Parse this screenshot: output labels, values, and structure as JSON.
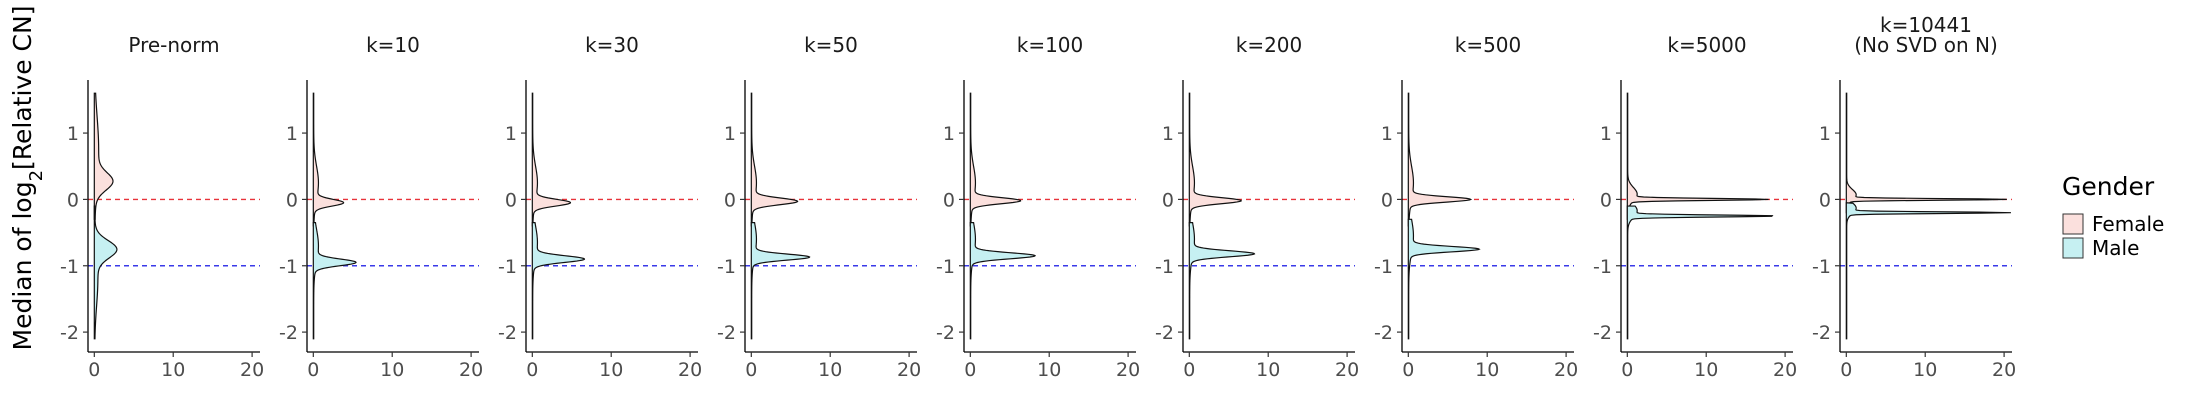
{
  "chart_data": {
    "type": "violin",
    "ylabel": "Median of log2[Relative CN]",
    "ylim": [
      -2.3,
      1.8
    ],
    "xlim": [
      -0.8,
      21
    ],
    "x_ticks": [
      0,
      10,
      20
    ],
    "y_ticks": [
      -2,
      -1,
      0,
      1
    ],
    "reference_lines": [
      {
        "y": 0,
        "color": "#e8333a",
        "style": "dashed"
      },
      {
        "y": -1,
        "color": "#3a3ae8",
        "style": "dashed"
      }
    ],
    "legend": {
      "title": "Gender",
      "placement": "right",
      "entries": [
        {
          "label": "Female",
          "color": "#fbe0dd"
        },
        {
          "label": "Male",
          "color": "#c6f0f2"
        }
      ]
    },
    "panels": [
      {
        "title": [
          "Pre-norm"
        ],
        "female": {
          "ymin": -0.3,
          "ymax": 1.6,
          "peaks": [
            {
              "y": 0.27,
              "d": 2.0,
              "w": 0.13
            },
            {
              "y": 0.75,
              "d": 0.5,
              "w": 0.5
            }
          ]
        },
        "male": {
          "ymin": -2.1,
          "ymax": -0.1,
          "peaks": [
            {
              "y": -0.75,
              "d": 2.6,
              "w": 0.13
            },
            {
              "y": -1.2,
              "d": 0.4,
              "w": 0.4
            }
          ]
        }
      },
      {
        "title": [
          "k=10"
        ],
        "female": {
          "ymin": -0.4,
          "ymax": 1.6,
          "peaks": [
            {
              "y": -0.05,
              "d": 3.5,
              "w": 0.05
            },
            {
              "y": 0.25,
              "d": 0.6,
              "w": 0.25
            }
          ]
        },
        "male": {
          "ymin": -2.1,
          "ymax": -0.35,
          "peaks": [
            {
              "y": -0.95,
              "d": 5.0,
              "w": 0.05
            },
            {
              "y": -0.7,
              "d": 0.6,
              "w": 0.25
            }
          ]
        }
      },
      {
        "title": [
          "k=30"
        ],
        "female": {
          "ymin": -0.4,
          "ymax": 1.6,
          "peaks": [
            {
              "y": -0.05,
              "d": 4.5,
              "w": 0.05
            },
            {
              "y": 0.25,
              "d": 0.6,
              "w": 0.25
            }
          ]
        },
        "male": {
          "ymin": -2.1,
          "ymax": -0.35,
          "peaks": [
            {
              "y": -0.9,
              "d": 6.2,
              "w": 0.05
            },
            {
              "y": -0.65,
              "d": 0.6,
              "w": 0.25
            }
          ]
        }
      },
      {
        "title": [
          "k=50"
        ],
        "female": {
          "ymin": -0.4,
          "ymax": 1.6,
          "peaks": [
            {
              "y": -0.03,
              "d": 5.5,
              "w": 0.05
            },
            {
              "y": 0.25,
              "d": 0.6,
              "w": 0.25
            }
          ]
        },
        "male": {
          "ymin": -2.1,
          "ymax": -0.35,
          "peaks": [
            {
              "y": -0.87,
              "d": 7.0,
              "w": 0.045
            },
            {
              "y": -0.6,
              "d": 0.6,
              "w": 0.25
            }
          ]
        }
      },
      {
        "title": [
          "k=100"
        ],
        "female": {
          "ymin": -0.4,
          "ymax": 1.6,
          "peaks": [
            {
              "y": -0.02,
              "d": 6.0,
              "w": 0.045
            },
            {
              "y": 0.25,
              "d": 0.6,
              "w": 0.25
            }
          ]
        },
        "male": {
          "ymin": -2.1,
          "ymax": -0.35,
          "peaks": [
            {
              "y": -0.85,
              "d": 7.8,
              "w": 0.045
            },
            {
              "y": -0.6,
              "d": 0.6,
              "w": 0.25
            }
          ]
        }
      },
      {
        "title": [
          "k=200"
        ],
        "female": {
          "ymin": -0.4,
          "ymax": 1.6,
          "peaks": [
            {
              "y": -0.02,
              "d": 6.2,
              "w": 0.045
            },
            {
              "y": 0.25,
              "d": 0.6,
              "w": 0.25
            }
          ]
        },
        "male": {
          "ymin": -2.1,
          "ymax": -0.35,
          "peaks": [
            {
              "y": -0.82,
              "d": 7.8,
              "w": 0.045
            },
            {
              "y": -0.6,
              "d": 0.6,
              "w": 0.25
            }
          ]
        }
      },
      {
        "title": [
          "k=500"
        ],
        "female": {
          "ymin": -0.4,
          "ymax": 1.6,
          "peaks": [
            {
              "y": 0.0,
              "d": 7.5,
              "w": 0.04
            },
            {
              "y": 0.25,
              "d": 0.6,
              "w": 0.25
            }
          ]
        },
        "male": {
          "ymin": -2.1,
          "ymax": -0.3,
          "peaks": [
            {
              "y": -0.75,
              "d": 8.5,
              "w": 0.04
            },
            {
              "y": -0.55,
              "d": 0.6,
              "w": 0.25
            }
          ]
        }
      },
      {
        "title": [
          "k=5000"
        ],
        "female": {
          "ymin": -0.3,
          "ymax": 1.6,
          "peaks": [
            {
              "y": 0.0,
              "d": 17.0,
              "w": 0.015
            },
            {
              "y": 0.08,
              "d": 1.2,
              "w": 0.1
            }
          ]
        },
        "male": {
          "ymin": -2.1,
          "ymax": -0.1,
          "peaks": [
            {
              "y": -0.25,
              "d": 18.0,
              "w": 0.015
            },
            {
              "y": -0.17,
              "d": 1.2,
              "w": 0.1
            }
          ]
        }
      },
      {
        "title": [
          "k=10441",
          "(No SVD on N)"
        ],
        "female": {
          "ymin": -0.2,
          "ymax": 1.6,
          "peaks": [
            {
              "y": 0.0,
              "d": 19.5,
              "w": 0.012
            },
            {
              "y": 0.07,
              "d": 1.2,
              "w": 0.08
            }
          ]
        },
        "male": {
          "ymin": -2.1,
          "ymax": -0.05,
          "peaks": [
            {
              "y": -0.2,
              "d": 20.0,
              "w": 0.012
            },
            {
              "y": -0.13,
              "d": 1.2,
              "w": 0.08
            }
          ]
        }
      }
    ]
  }
}
